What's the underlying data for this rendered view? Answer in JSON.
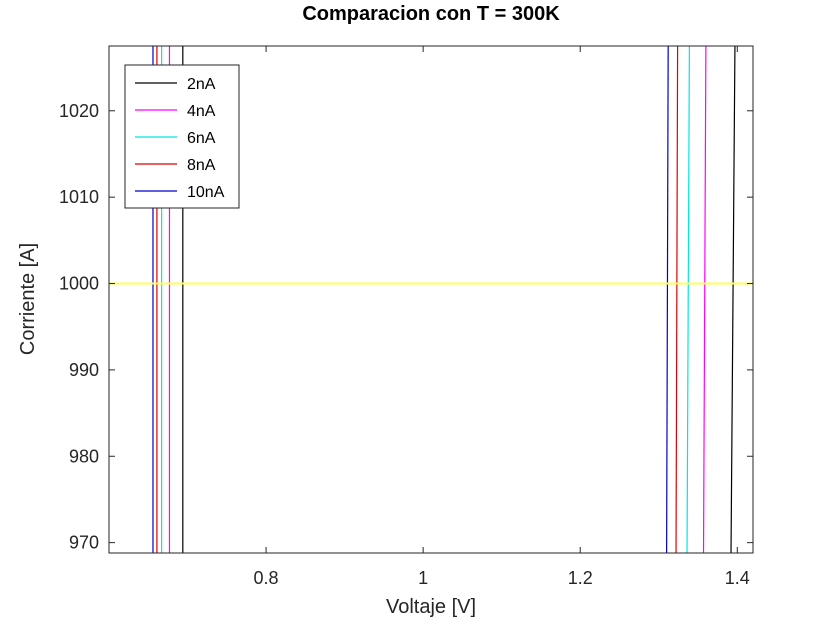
{
  "chart_data": {
    "type": "line",
    "title": "Comparacion con T = 300K",
    "xlabel": "Voltaje [V]",
    "ylabel": "Corriente [A]",
    "xlim": [
      0.6,
      1.42
    ],
    "ylim": [
      968.8,
      1027.5
    ],
    "xticks": [
      0.8,
      1,
      1.2,
      1.4
    ],
    "xtick_labels": [
      "0.8",
      "1",
      "1.2",
      "1.4"
    ],
    "yticks": [
      970,
      980,
      990,
      1000,
      1010,
      1020
    ],
    "ytick_labels": [
      "970",
      "980",
      "990",
      "1000",
      "1010",
      "1020"
    ],
    "grid": false,
    "legend_position": "top-left",
    "series": [
      {
        "name": "2nA",
        "color": "#000000",
        "segments": [
          [
            [
              0.694,
              968.8
            ],
            [
              0.694,
              1027.5
            ]
          ],
          [
            [
              1.392,
              968.8
            ],
            [
              1.397,
              1027.5
            ]
          ]
        ]
      },
      {
        "name": "4nA",
        "color": "#ff00ff",
        "segments": [
          [
            [
              0.677,
              968.8
            ],
            [
              0.677,
              1027.5
            ]
          ],
          [
            [
              1.357,
              968.8
            ],
            [
              1.36,
              1027.5
            ]
          ]
        ]
      },
      {
        "name": "6nA",
        "color": "#00e5e5",
        "segments": [
          [
            [
              0.667,
              968.8
            ],
            [
              0.667,
              1027.5
            ]
          ],
          [
            [
              1.336,
              968.8
            ],
            [
              1.339,
              1027.5
            ]
          ]
        ]
      },
      {
        "name": "8nA",
        "color": "#e00000",
        "segments": [
          [
            [
              0.661,
              968.8
            ],
            [
              0.661,
              1027.5
            ]
          ],
          [
            [
              1.322,
              968.8
            ],
            [
              1.324,
              1027.5
            ]
          ]
        ]
      },
      {
        "name": "10nA",
        "color": "#0000cc",
        "segments": [
          [
            [
              0.656,
              968.8
            ],
            [
              0.656,
              1027.5
            ]
          ],
          [
            [
              1.31,
              968.8
            ],
            [
              1.312,
              1027.5
            ]
          ]
        ]
      }
    ],
    "reference_line": {
      "y": 1000,
      "x_range": [
        0.6,
        1.42
      ],
      "color": "#ffff55"
    }
  }
}
